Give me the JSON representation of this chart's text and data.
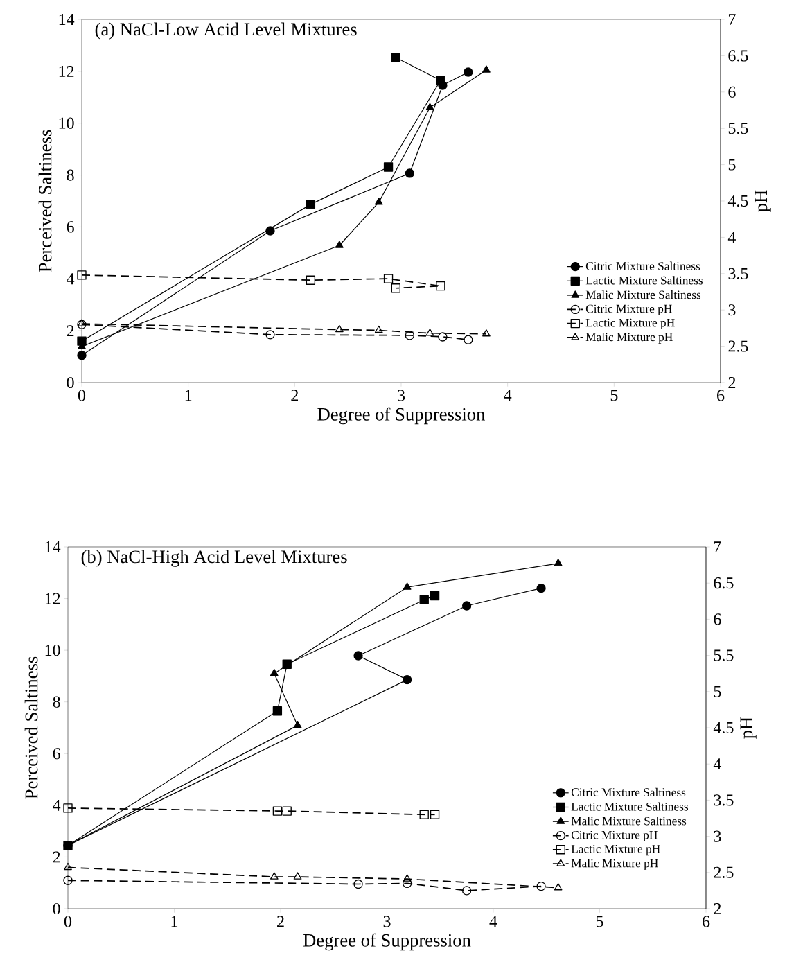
{
  "chart_data": [
    {
      "type": "line",
      "title": "(a) NaCl-Low Acid Level Mixtures",
      "xlabel": "Degree of Suppression",
      "ylabel": "Perceived Saltiness",
      "y2label": "pH",
      "xlim": [
        0,
        6
      ],
      "xticks": [
        0,
        1,
        2,
        3,
        4,
        5,
        6
      ],
      "ylim": [
        0,
        14
      ],
      "yticks": [
        0,
        2,
        4,
        6,
        8,
        10,
        12,
        14
      ],
      "y2lim": [
        2,
        7
      ],
      "y2ticks": [
        2,
        2.5,
        3,
        3.5,
        4,
        4.5,
        5,
        5.5,
        6,
        6.5,
        7
      ],
      "legend": "bottom right",
      "series": [
        {
          "name": "Citric Mixture Saltiness",
          "color": "#000000",
          "marker": "circle",
          "line_style": "solid",
          "x": [
            0,
            1.77,
            3.08,
            3.39,
            3.63
          ],
          "values": [
            1.05,
            5.85,
            8.07,
            11.46,
            11.97
          ]
        },
        {
          "name": "Lactic Mixture Saltiness",
          "color": "#000000",
          "marker": "square",
          "line_style": "solid",
          "x": [
            0,
            2.15,
            2.88,
            3.37,
            2.95
          ],
          "values": [
            1.6,
            6.87,
            8.31,
            11.65,
            12.53
          ]
        },
        {
          "name": "Malic Mixture Saltiness",
          "color": "#000000",
          "marker": "triangle",
          "line_style": "solid",
          "x": [
            0,
            2.42,
            2.79,
            3.27,
            3.8
          ],
          "values": [
            1.39,
            5.29,
            6.95,
            10.6,
            12.05
          ]
        },
        {
          "name": "Citric Mixture pH",
          "color": "#000000",
          "marker": "circle",
          "line_style": "dashed",
          "axis": "y2",
          "x": [
            0,
            1.77,
            3.08,
            3.39,
            3.63
          ],
          "values": [
            2.8,
            2.66,
            2.65,
            2.63,
            2.59
          ]
        },
        {
          "name": "Lactic Mixture pH",
          "color": "#000000",
          "marker": "square",
          "line_style": "dashed",
          "axis": "y2",
          "x": [
            0,
            2.15,
            2.88,
            3.37,
            2.95
          ],
          "values": [
            3.48,
            3.41,
            3.43,
            3.33,
            3.3
          ]
        },
        {
          "name": "Malic Mixture pH",
          "color": "#000000",
          "marker": "triangle",
          "line_style": "dashed",
          "axis": "y2",
          "x": [
            0,
            2.42,
            2.79,
            3.27,
            3.8
          ],
          "values": [
            2.81,
            2.73,
            2.72,
            2.68,
            2.67
          ]
        }
      ]
    },
    {
      "type": "line",
      "title": "(b) NaCl-High Acid Level Mixtures",
      "xlabel": "Degree of Suppression",
      "ylabel": "Perceived Saltiness",
      "y2label": "pH",
      "xlim": [
        0,
        6
      ],
      "xticks": [
        0,
        1,
        2,
        3,
        4,
        5,
        6
      ],
      "ylim": [
        0,
        14
      ],
      "yticks": [
        0,
        2,
        4,
        6,
        8,
        10,
        12,
        14
      ],
      "y2lim": [
        2,
        7
      ],
      "y2ticks": [
        2,
        2.5,
        3,
        3.5,
        4,
        4.5,
        5,
        5.5,
        6,
        6.5,
        7
      ],
      "legend": "bottom right",
      "series": [
        {
          "name": "Citric Mixture Saltiness",
          "color": "#000000",
          "marker": "circle",
          "line_style": "solid",
          "x": [
            0,
            3.19,
            2.73,
            3.75,
            4.45
          ],
          "values": [
            2.45,
            8.86,
            9.79,
            11.72,
            12.4
          ]
        },
        {
          "name": "Lactic Mixture Saltiness",
          "color": "#000000",
          "marker": "square",
          "line_style": "solid",
          "x": [
            0,
            1.97,
            2.06,
            3.35,
            3.45
          ],
          "values": [
            2.45,
            7.65,
            9.46,
            11.95,
            12.11
          ]
        },
        {
          "name": "Malic Mixture Saltiness",
          "color": "#000000",
          "marker": "triangle",
          "line_style": "solid",
          "x": [
            0,
            2.16,
            1.94,
            3.19,
            4.61
          ],
          "values": [
            2.45,
            7.09,
            9.1,
            12.44,
            13.36
          ]
        },
        {
          "name": "Citric Mixture pH",
          "color": "#000000",
          "marker": "circle",
          "line_style": "dashed",
          "axis": "y2",
          "x": [
            0,
            2.73,
            3.19,
            3.75,
            4.45
          ],
          "values": [
            2.39,
            2.34,
            2.35,
            2.25,
            2.31
          ]
        },
        {
          "name": "Lactic Mixture pH",
          "color": "#000000",
          "marker": "square",
          "line_style": "dashed",
          "axis": "y2",
          "x": [
            0,
            1.97,
            2.06,
            3.35,
            3.45
          ],
          "values": [
            3.39,
            3.35,
            3.35,
            3.3,
            3.3
          ]
        },
        {
          "name": "Malic Mixture pH",
          "color": "#000000",
          "marker": "triangle",
          "line_style": "dashed",
          "axis": "y2",
          "x": [
            0,
            1.94,
            2.16,
            3.19,
            4.61
          ],
          "values": [
            2.57,
            2.44,
            2.44,
            2.41,
            2.29
          ]
        }
      ]
    }
  ]
}
